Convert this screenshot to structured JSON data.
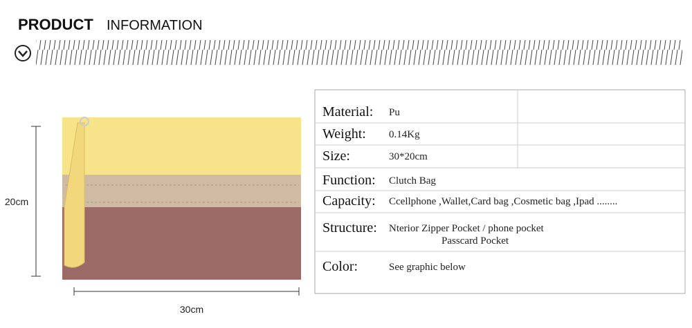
{
  "header": {
    "title_bold": "PRODUCT",
    "title_light": "INFORMATION"
  },
  "dimensions": {
    "height": "20cm",
    "width": "30cm"
  },
  "table": {
    "rows": [
      {
        "label": "Material:",
        "value": "Pu"
      },
      {
        "label": "Weight:",
        "value": "0.14Kg"
      },
      {
        "label": "Size:",
        "value": "30*20cm"
      },
      {
        "label": "Function:",
        "value": "Clutch Bag"
      },
      {
        "label": "Capacity:",
        "value": "Ccellphone ,Wallet,Card bag ,Cosmetic bag ,Ipad ........"
      },
      {
        "label": "Structure:",
        "value": "Nterior Zipper Pocket /  phone pocket",
        "value2": "Passcard Pocket"
      },
      {
        "label": "Color:",
        "value": "See graphic below"
      }
    ]
  }
}
